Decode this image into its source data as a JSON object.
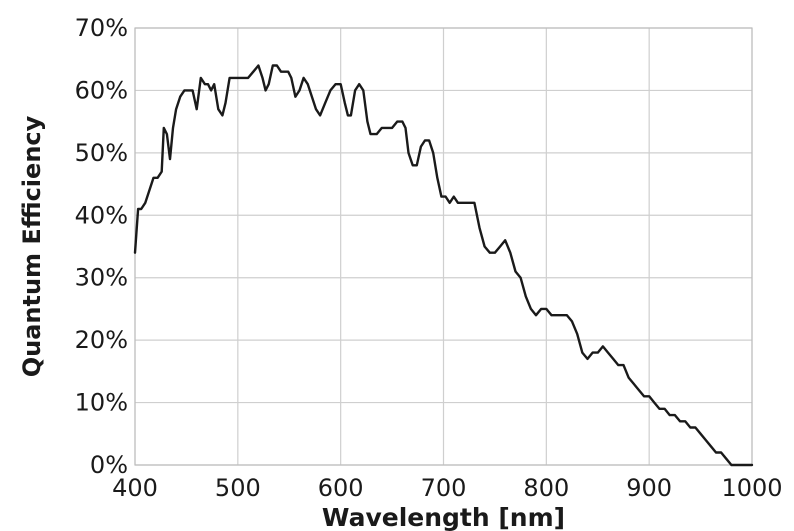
{
  "chart_data": {
    "type": "line",
    "title": "",
    "xlabel": "Wavelength [nm]",
    "ylabel": "Quantum Efficiency",
    "xlim": [
      400,
      1000
    ],
    "ylim": [
      0,
      70
    ],
    "x_ticks": [
      400,
      500,
      600,
      700,
      800,
      900,
      1000
    ],
    "y_ticks": [
      0,
      10,
      20,
      30,
      40,
      50,
      60,
      70
    ],
    "x_tick_labels": [
      "400",
      "500",
      "600",
      "700",
      "800",
      "900",
      "1000"
    ],
    "y_tick_labels": [
      "0%",
      "10%",
      "20%",
      "30%",
      "40%",
      "50%",
      "60%",
      "70%"
    ],
    "grid": true,
    "series": [
      {
        "x": [
          400,
          403,
          406,
          410,
          414,
          418,
          422,
          426,
          428,
          431,
          434,
          437,
          440,
          444,
          448,
          452,
          456,
          460,
          464,
          468,
          471,
          474,
          477,
          481,
          485,
          488,
          492,
          496,
          500,
          505,
          510,
          515,
          520,
          524,
          527,
          530,
          534,
          538,
          542,
          546,
          549,
          552,
          556,
          560,
          564,
          568,
          572,
          576,
          580,
          585,
          590,
          595,
          600,
          604,
          607,
          610,
          614,
          618,
          622,
          626,
          629,
          632,
          635,
          640,
          645,
          650,
          655,
          660,
          663,
          666,
          670,
          674,
          678,
          682,
          686,
          690,
          694,
          698,
          702,
          706,
          710,
          714,
          718,
          722,
          726,
          730,
          735,
          740,
          745,
          750,
          755,
          760,
          765,
          770,
          775,
          780,
          785,
          790,
          795,
          800,
          805,
          810,
          815,
          820,
          825,
          830,
          835,
          840,
          845,
          850,
          855,
          860,
          865,
          870,
          875,
          880,
          885,
          890,
          895,
          900,
          905,
          910,
          915,
          920,
          925,
          930,
          935,
          940,
          945,
          950,
          955,
          960,
          965,
          970,
          975,
          980,
          985,
          990,
          995,
          1000
        ],
        "y": [
          34,
          41,
          41,
          42,
          44,
          46,
          46,
          47,
          54,
          53,
          49,
          54,
          57,
          59,
          60,
          60,
          60,
          57,
          62,
          61,
          61,
          60,
          61,
          57,
          56,
          58,
          62,
          62,
          62,
          62,
          62,
          63,
          64,
          62,
          60,
          61,
          64,
          64,
          63,
          63,
          63,
          62,
          59,
          60,
          62,
          61,
          59,
          57,
          56,
          58,
          60,
          61,
          61,
          58,
          56,
          56,
          60,
          61,
          60,
          55,
          53,
          53,
          53,
          54,
          54,
          54,
          55,
          55,
          54,
          50,
          48,
          48,
          51,
          52,
          52,
          50,
          46,
          43,
          43,
          42,
          43,
          42,
          42,
          42,
          42,
          42,
          38,
          35,
          34,
          34,
          35,
          36,
          34,
          31,
          30,
          27,
          25,
          24,
          25,
          25,
          24,
          24,
          24,
          24,
          23,
          21,
          18,
          17,
          18,
          18,
          19,
          18,
          17,
          16,
          16,
          14,
          13,
          12,
          11,
          11,
          10,
          9,
          9,
          8,
          8,
          7,
          7,
          6,
          6,
          5,
          4,
          3,
          2,
          2,
          1,
          0,
          0,
          0,
          0,
          0
        ]
      }
    ]
  }
}
